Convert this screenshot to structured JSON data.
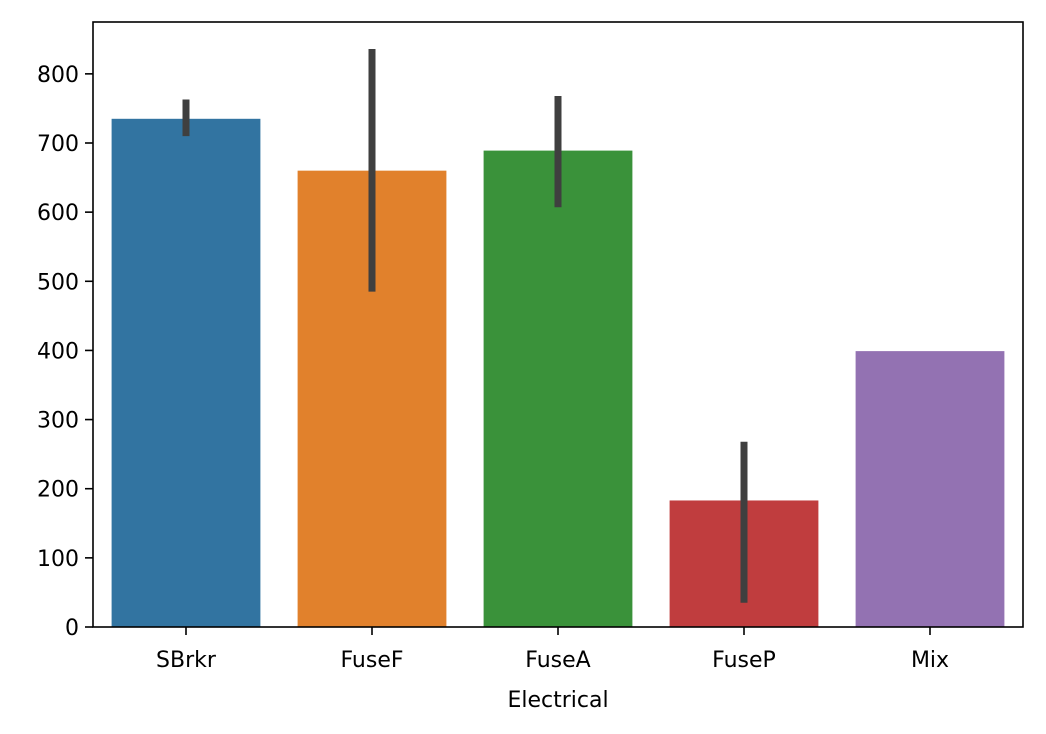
{
  "chart_data": {
    "type": "bar",
    "title": "",
    "xlabel": "Electrical",
    "ylabel": "",
    "categories": [
      "SBrkr",
      "FuseF",
      "FuseA",
      "FuseP",
      "Mix"
    ],
    "values": [
      735,
      660,
      689,
      183,
      399
    ],
    "error_bars": [
      {
        "low": 710,
        "high": 763
      },
      {
        "low": 485,
        "high": 836
      },
      {
        "low": 607,
        "high": 768
      },
      {
        "low": 35,
        "high": 268
      },
      null
    ],
    "colors": [
      "#3274a1",
      "#e1812c",
      "#3a923a",
      "#c03d3e",
      "#9372b2"
    ],
    "error_bar_color": "#3f3f3f",
    "yticks": [
      0,
      100,
      200,
      300,
      400,
      500,
      600,
      700,
      800
    ],
    "ylim": [
      0,
      875
    ],
    "grid": false,
    "legend": "none"
  }
}
